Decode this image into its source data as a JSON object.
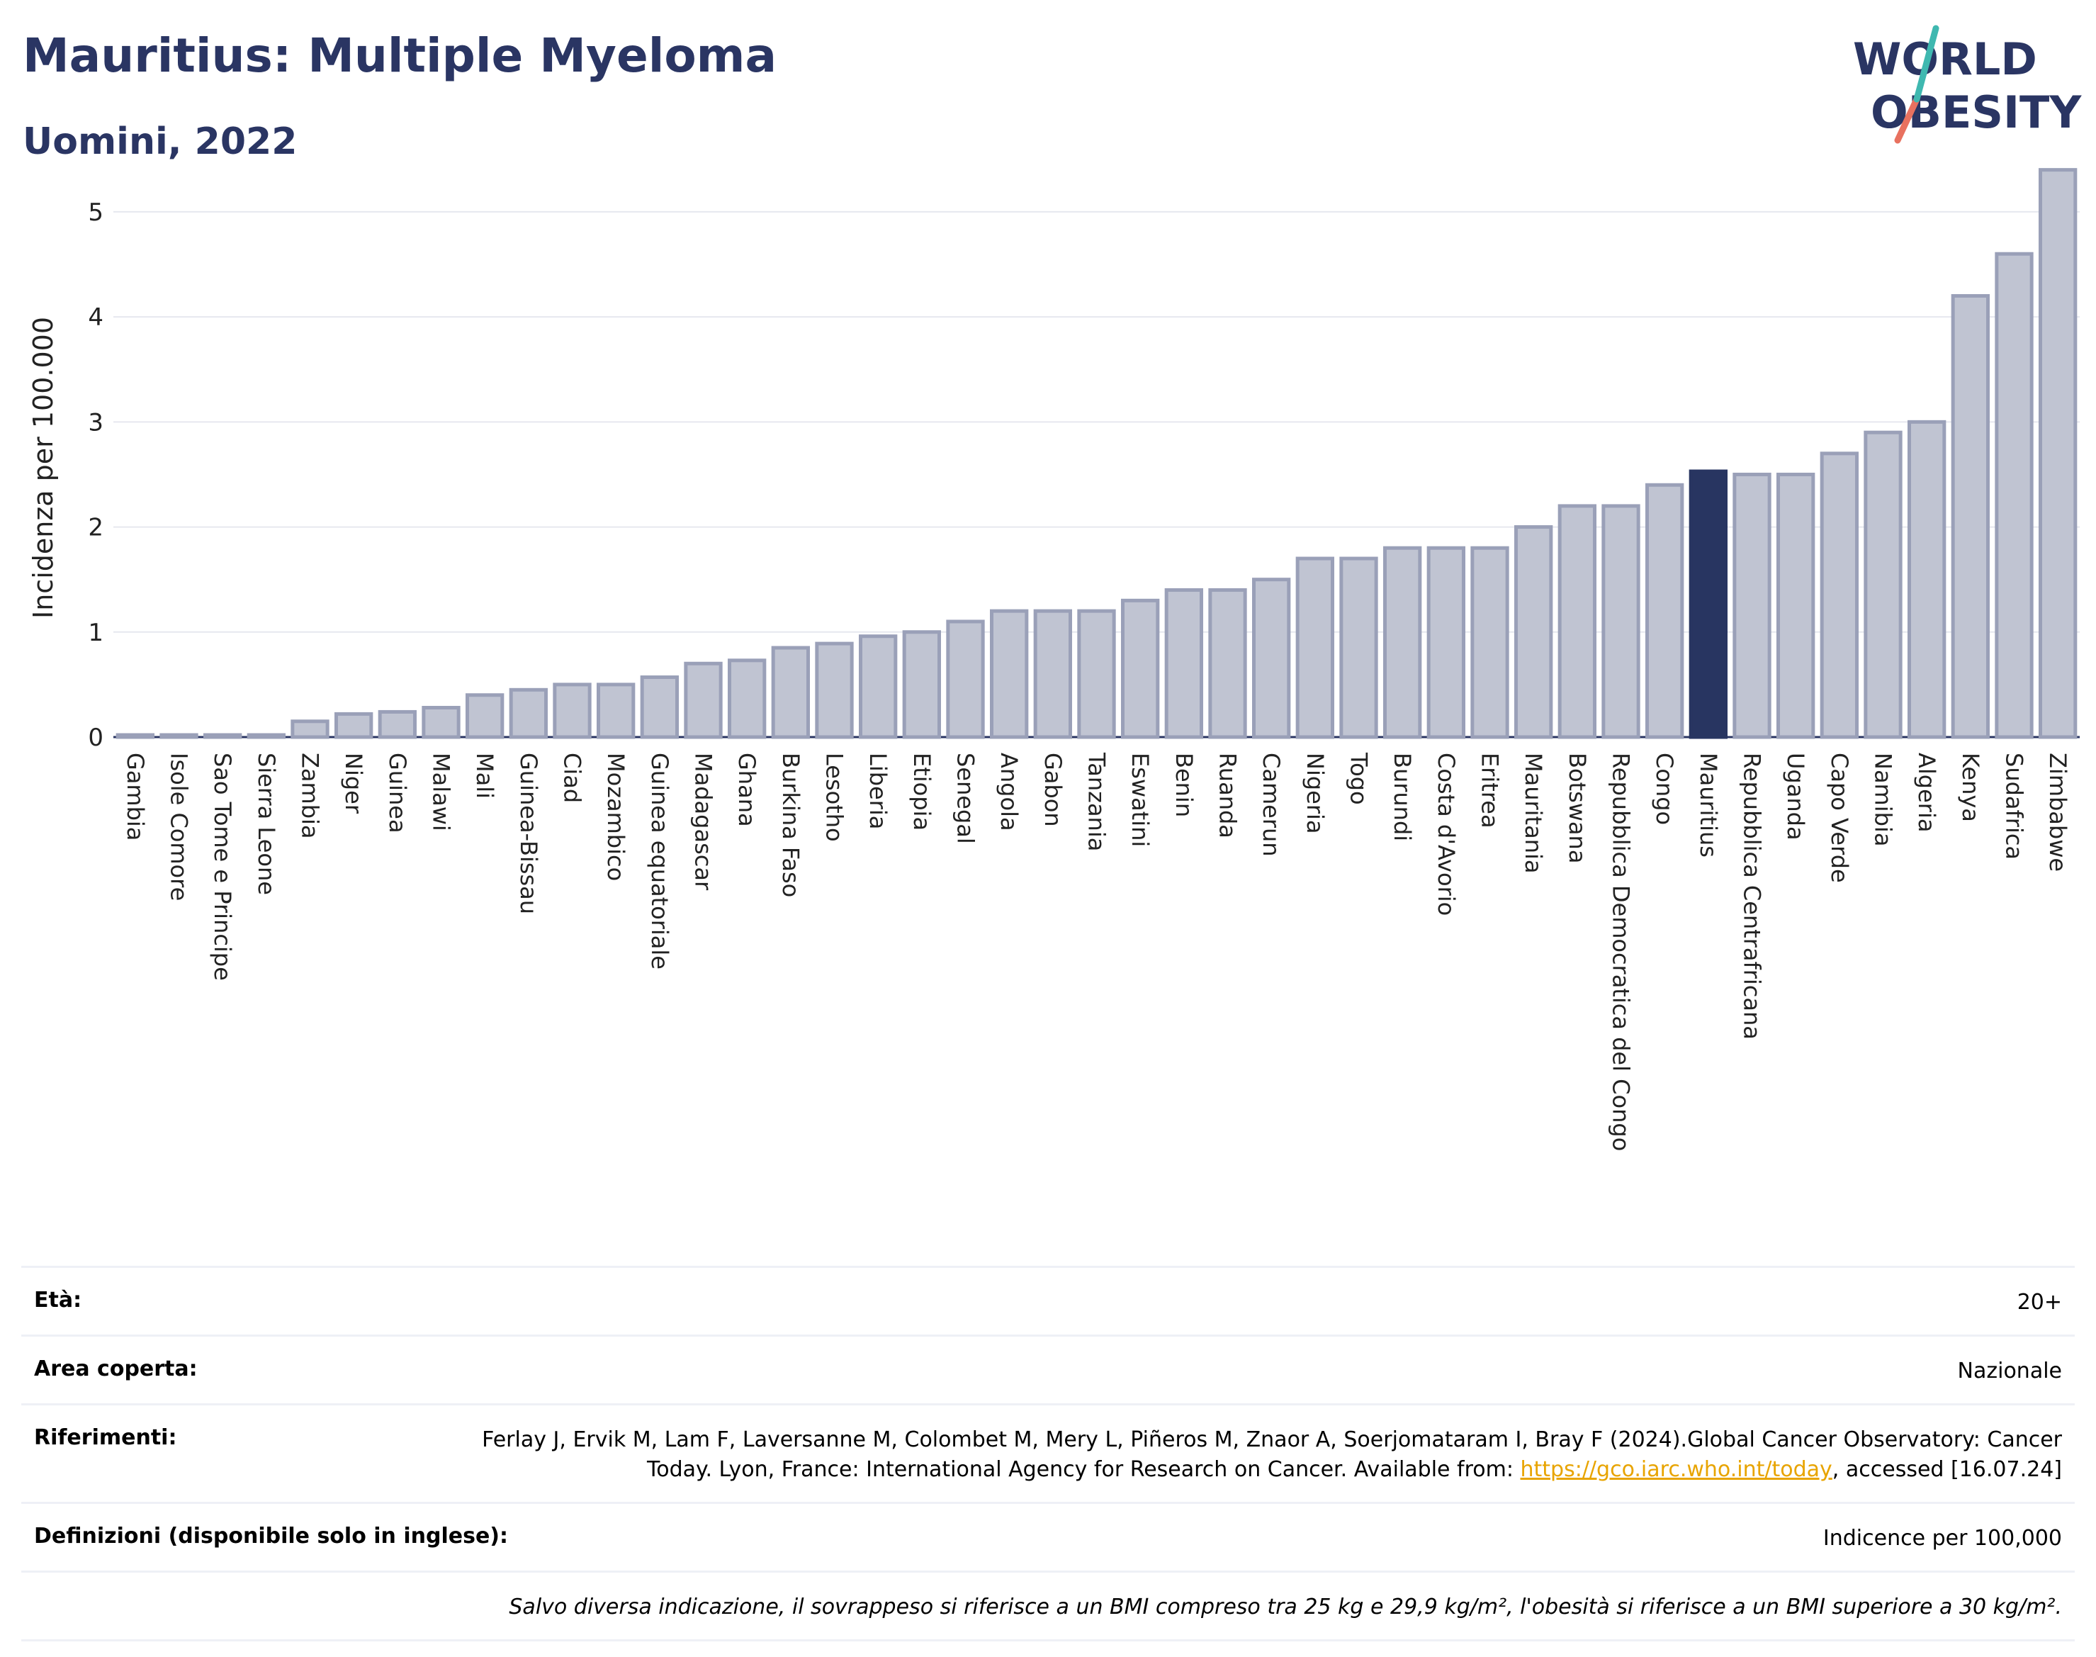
{
  "header": {
    "title": "Mauritius: Multiple Myeloma",
    "subtitle": "Uomini, 2022"
  },
  "logo": {
    "line1": "WORLD",
    "line2": "OBESITY"
  },
  "colors": {
    "bar": "#c0c4d2",
    "bar_stroke": "#9aa0b8",
    "highlight": "#283561",
    "title": "#2a3563"
  },
  "chart_data": {
    "type": "bar",
    "ylabel": "Incidenza per 100.000",
    "ylim": [
      0,
      5.6
    ],
    "yticks": [
      0,
      1,
      2,
      3,
      4,
      5
    ],
    "highlight": "Mauritius",
    "grid": true,
    "categories": [
      "Gambia",
      "Isole Comore",
      "Sao Tome e Principe",
      "Sierra Leone",
      "Zambia",
      "Niger",
      "Guinea",
      "Malawi",
      "Mali",
      "Guinea-Bissau",
      "Ciad",
      "Mozambico",
      "Guinea equatoriale",
      "Madagascar",
      "Ghana",
      "Burkina Faso",
      "Lesotho",
      "Liberia",
      "Etiopia",
      "Senegal",
      "Angola",
      "Gabon",
      "Tanzania",
      "Eswatini",
      "Benin",
      "Ruanda",
      "Camerun",
      "Nigeria",
      "Togo",
      "Burundi",
      "Costa d'Avorio",
      "Eritrea",
      "Mauritania",
      "Botswana",
      "Repubblica Democratica del Congo",
      "Congo",
      "Mauritius",
      "Repubblica Centrafricana",
      "Uganda",
      "Capo Verde",
      "Namibia",
      "Algeria",
      "Kenya",
      "Sudafrica",
      "Zimbabwe"
    ],
    "values": [
      0.02,
      0.02,
      0.02,
      0.02,
      0.15,
      0.22,
      0.24,
      0.28,
      0.4,
      0.45,
      0.5,
      0.5,
      0.57,
      0.7,
      0.73,
      0.85,
      0.89,
      0.96,
      1.0,
      1.1,
      1.2,
      1.2,
      1.2,
      1.3,
      1.4,
      1.4,
      1.5,
      1.7,
      1.7,
      1.8,
      1.8,
      1.8,
      2.0,
      2.2,
      2.2,
      2.4,
      2.53,
      2.5,
      2.5,
      2.7,
      2.9,
      3.0,
      4.2,
      4.6,
      5.4
    ]
  },
  "info": {
    "age_label": "Età:",
    "age_value": "20+",
    "area_label": "Area coperta:",
    "area_value": "Nazionale",
    "ref_label": "Riferimenti:",
    "ref_text_1": "Ferlay J, Ervik M, Lam F, Laversanne M, Colombet M, Mery L, Piñeros M, Znaor A, Soerjomataram I, Bray F (2024).Global Cancer Observatory: Cancer Today. Lyon, France: International Agency for Research on Cancer. Available from: ",
    "ref_link": "https://gco.iarc.who.int/today",
    "ref_text_2": ", accessed [16.07.24]",
    "def_label": "Definizioni (disponibile solo in inglese):",
    "def_value": "Indicence per 100,000",
    "footnote": "Salvo diversa indicazione, il sovrappeso si riferisce a un BMI compreso tra 25 kg e 29,9 kg/m², l'obesità si riferisce a un BMI superiore a 30 kg/m²."
  }
}
